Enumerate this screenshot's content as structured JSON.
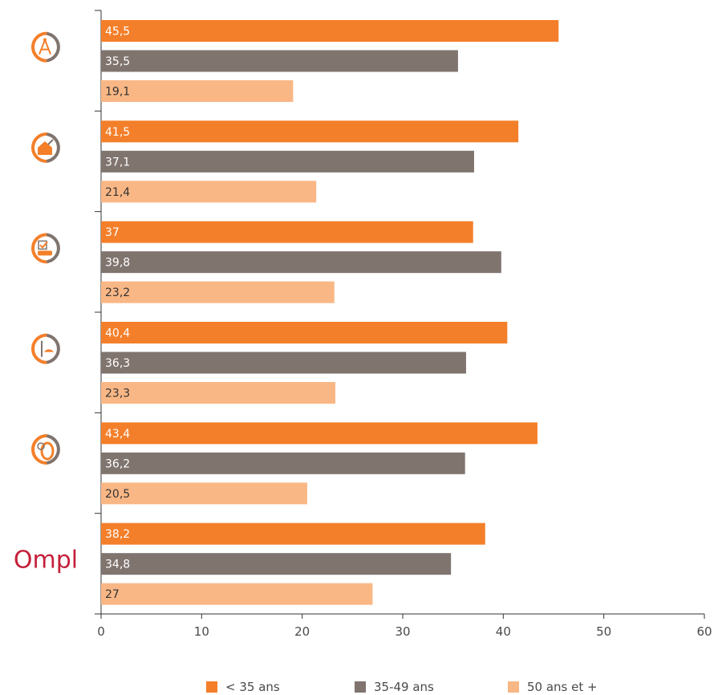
{
  "chart_data": {
    "type": "bar",
    "orientation": "horizontal",
    "groups": [
      {
        "icon": "architecture-compass-icon"
      },
      {
        "icon": "real-estate-house-icon"
      },
      {
        "icon": "vehicle-inspection-icon"
      },
      {
        "icon": "surveyor-helmet-icon"
      },
      {
        "icon": "tire-expertise-icon"
      },
      {
        "icon": "ompl-logo",
        "logo_text": "Ompl"
      }
    ],
    "series": [
      {
        "name": "< 35 ans",
        "color": "#f47f2a",
        "values": [
          45.5,
          41.5,
          37,
          40.4,
          43.4,
          38.2
        ],
        "labels": [
          "45,5",
          "41,5",
          "37",
          "40,4",
          "43,4",
          "38,2"
        ]
      },
      {
        "name": "35-49 ans",
        "color": "#80746f",
        "values": [
          35.5,
          37.1,
          39.8,
          36.3,
          36.2,
          34.8
        ],
        "labels": [
          "35,5",
          "37,1",
          "39,8",
          "36,3",
          "36,2",
          "34,8"
        ]
      },
      {
        "name": "50 ans et +",
        "color": "#f9b785",
        "values": [
          19.1,
          21.4,
          23.2,
          23.3,
          20.5,
          27
        ],
        "labels": [
          "19,1",
          "21,4",
          "23,2",
          "23,3",
          "20,5",
          "27"
        ]
      }
    ],
    "xlim": [
      0,
      60
    ],
    "xticks": [
      "0",
      "10",
      "20",
      "30",
      "40",
      "50",
      "60"
    ],
    "grid": false,
    "legend_position": "bottom",
    "value_label_colors": {
      "light": "#ffffff",
      "dark": "#333333"
    },
    "icon_color": "#f47f2a",
    "icon_secondary_color": "#80746f",
    "logo_color": "#c4203a"
  }
}
